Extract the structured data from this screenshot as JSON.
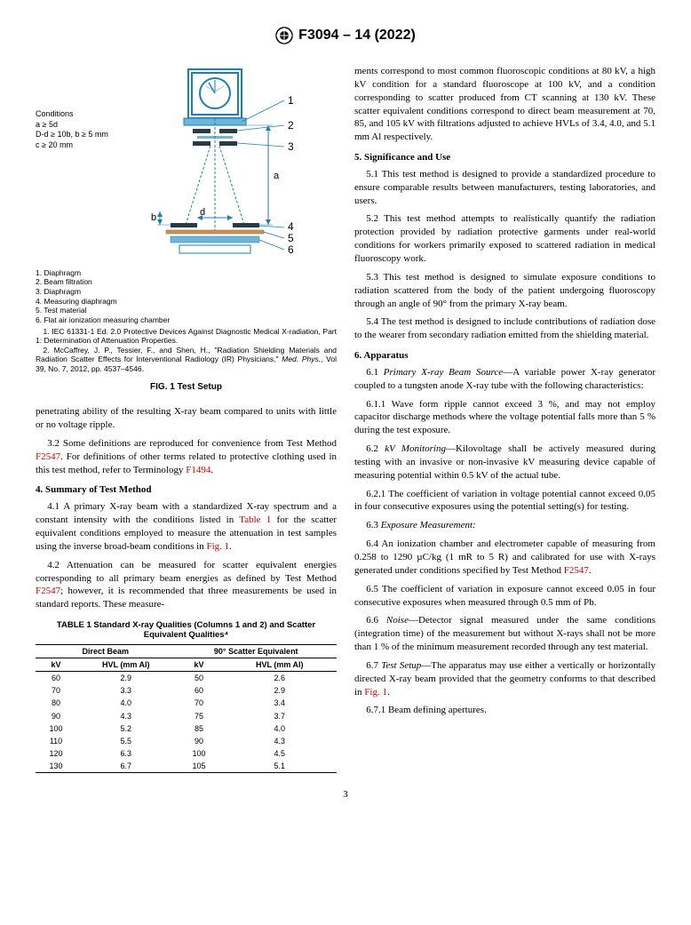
{
  "header": {
    "designation": "F3094 – 14 (2022)"
  },
  "figure": {
    "conditions": {
      "title": "Conditions",
      "line1": "a ≥ 5d",
      "line2": "D-d ≥ 10b, b ≥ 5 mm",
      "line3": "c ≥ 20 mm"
    },
    "key": {
      "k1": "1. Diaphragm",
      "k2": "2. Beam filtration",
      "k3": "3. Diaphragm",
      "k4": "4. Measuring diaphragm",
      "k5": "5. Test material",
      "k6": "6. Flat air ionization measuring chamber"
    },
    "footnotes": {
      "fn1": "1. IEC 61331-1 Ed. 2.0 Protective Devices Against Diagnostic Medical X-radiation, Part 1: Determination of Attenuation Properties.",
      "fn2a": "2. McCaffrey, J. P., Tessier, F., and Shen, H., \"Radiation Shielding Materials and Radiation Scatter Effects for Interventional Radiology (IR) Physicians,\" ",
      "fn2b": "Med. Phys.",
      "fn2c": ", Vol 39, No. 7, 2012, pp. 4537–4546."
    },
    "caption": "FIG. 1 Test Setup",
    "labels": {
      "a": "a",
      "b": "b",
      "d": "d",
      "n1": "1",
      "n2": "2",
      "n3": "3",
      "n4": "4",
      "n5": "5",
      "n6": "6"
    },
    "colors": {
      "line": "#1b7fb5",
      "fill_dark": "#2a3a42",
      "fill_light": "#6fb6d6",
      "orange": "#e88b2d",
      "gauge_bg": "#fff"
    }
  },
  "col1": {
    "p1": "penetrating ability of the resulting X-ray beam compared to units with little or no voltage ripple.",
    "p2a": "3.2 Some definitions are reproduced for convenience from Test Method ",
    "p2link": "F2547",
    "p2b": ". For definitions of other terms related to protective clothing used in this test method, refer to Terminology ",
    "p2link2": "F1494",
    "p2c": ".",
    "h4": "4. Summary of Test Method",
    "p41a": "4.1 A primary X-ray beam with a standardized X-ray spectrum and a constant intensity with the conditions listed in ",
    "p41link": "Table 1",
    "p41b": " for the scatter equivalent conditions employed to measure the attenuation in test samples using the inverse broad-beam conditions in ",
    "p41link2": "Fig. 1",
    "p41c": ".",
    "p42a": "4.2 Attenuation can be measured for scatter equivalent energies corresponding to all primary beam energies as defined by Test Method ",
    "p42link": "F2547",
    "p42b": "; however, it is recommended that three measurements be used in standard reports. These measure-"
  },
  "table": {
    "title": "TABLE 1 Standard X-ray Qualities (Columns 1 and 2) and Scatter Equivalent Qualities⁴",
    "group1": "Direct Beam",
    "group2": "90° Scatter Equivalent",
    "col_kv": "kV",
    "col_hvl": "HVL (mm Al)",
    "rows": [
      [
        "60",
        "2.9",
        "50",
        "2.6"
      ],
      [
        "70",
        "3.3",
        "60",
        "2.9"
      ],
      [
        "80",
        "4.0",
        "70",
        "3.4"
      ],
      [
        "90",
        "4.3",
        "75",
        "3.7"
      ],
      [
        "100",
        "5.2",
        "85",
        "4.0"
      ],
      [
        "110",
        "5.5",
        "90",
        "4.3"
      ],
      [
        "120",
        "6.3",
        "100",
        "4.5"
      ],
      [
        "130",
        "6.7",
        "105",
        "5.1"
      ]
    ]
  },
  "col2": {
    "p_cont": "ments correspond to most common fluoroscopic conditions at 80 kV, a high kV condition for a standard fluoroscope at 100 kV, and a condition corresponding to scatter produced from CT scanning at 130 kV. These scatter equivalent conditions correspond to direct beam measurement at 70, 85, and 105 kV with filtrations adjusted to achieve HVLs of 3.4, 4.0, and 5.1 mm Al respectively.",
    "h5": "5. Significance and Use",
    "p51": "5.1 This test method is designed to provide a standardized procedure to ensure comparable results between manufacturers, testing laboratories, and users.",
    "p52": "5.2 This test method attempts to realistically quantify the radiation protection provided by radiation protective garments under real-world conditions for workers primarily exposed to scattered radiation in medical fluoroscopy work.",
    "p53": "5.3 This test method is designed to simulate exposure conditions to radiation scattered from the body of the patient undergoing fluoroscopy through an angle of 90° from the primary X-ray beam.",
    "p54": "5.4 The test method is designed to include contributions of radiation dose to the wearer from secondary radiation emitted from the shielding material.",
    "h6": "6. Apparatus",
    "p61i": "Primary X-ray Beam Source",
    "p61": "6.1 ",
    "p61b": "—A variable power X-ray generator coupled to a tungsten anode X-ray tube with the following characteristics:",
    "p611": "6.1.1 Wave form ripple cannot exceed 3 %, and may not employ capacitor discharge methods where the voltage potential falls more than 5 % during the test exposure.",
    "p62": "6.2 ",
    "p62i": "kV Monitoring",
    "p62b": "—Kilovoltage shall be actively measured during testing with an invasive or non-invasive kV measuring device capable of measuring potential within 0.5 kV of the actual tube.",
    "p621": "6.2.1 The coefficient of variation in voltage potential cannot exceed 0.05 in four consecutive exposures using the potential setting(s) for testing.",
    "p63": "6.3 ",
    "p63i": "Exposure Measurement:",
    "p64a": "6.4 An ionization chamber and electrometer capable of measuring from 0.258 to 1290 µC/kg (1 mR to 5 R) and calibrated for use with X-rays generated under conditions specified by Test Method ",
    "p64link": "F2547",
    "p64b": ".",
    "p65": "6.5 The coefficient of variation in exposure cannot exceed 0.05 in four consecutive exposures when measured through 0.5 mm of Pb.",
    "p66": "6.6 ",
    "p66i": "Noise",
    "p66b": "—Detector signal measured under the same conditions (integration time) of the measurement but without X-rays shall not be more than 1 % of the minimum measurement recorded through any test material.",
    "p67": "6.7 ",
    "p67i": "Test Setup",
    "p67b": "—The apparatus may use either a vertically or horizontally directed X-ray beam provided that the geometry conforms to that described in ",
    "p67link": "Fig. 1",
    "p67c": ".",
    "p671": "6.7.1 Beam defining apertures."
  },
  "pagenum": "3"
}
